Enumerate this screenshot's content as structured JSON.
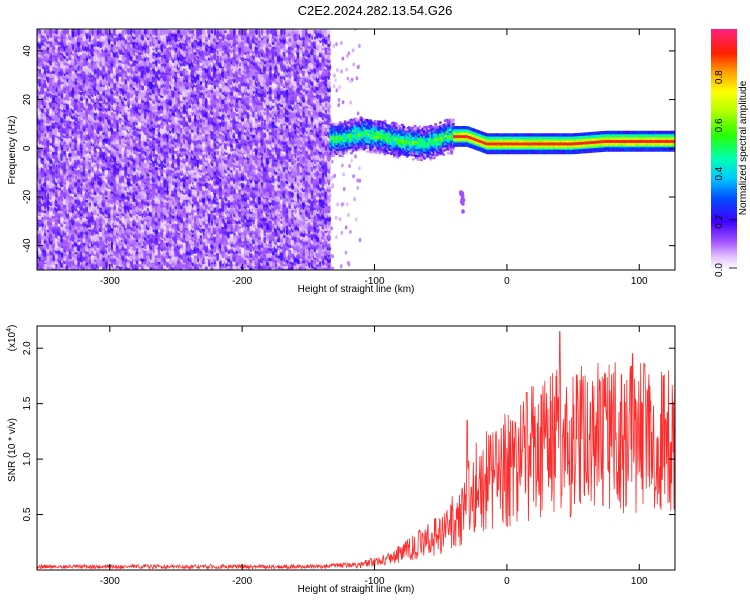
{
  "page": {
    "title": "C2E2.2024.282.13.54.G26"
  },
  "chart_data": [
    {
      "type": "heatmap",
      "title": "C2E2.2024.282.13.54.G26",
      "xlabel": "Height of straight line (km)",
      "ylabel": "Frequency (Hz)",
      "xlim": [
        -355,
        127
      ],
      "ylim": [
        -50,
        49
      ],
      "x_ticks": [
        -300,
        -200,
        -100,
        0,
        100
      ],
      "y_ticks": [
        -40,
        -20,
        0,
        20,
        40
      ],
      "colorbar": {
        "label": "Normalized spectral amplitude",
        "range": [
          0,
          1
        ],
        "ticks": [
          0.0,
          0.2,
          0.4,
          0.6,
          0.8
        ],
        "tick_labels": [
          "0.0",
          "0.2",
          "0.4",
          "0.6",
          "0.8"
        ]
      },
      "regions": [
        {
          "x_range": [
            -355,
            -133
          ],
          "description_value": 0.15,
          "freq_range": [
            -50,
            49
          ]
        },
        {
          "x_range": [
            -133,
            -40
          ],
          "freq_range": [
            -3,
            10
          ],
          "peak_value": 0.55
        },
        {
          "x_range": [
            -40,
            127
          ],
          "freq_range": [
            0,
            6
          ],
          "peak_value": 0.95
        }
      ],
      "ridge_points": [
        {
          "x": -125,
          "y": 4
        },
        {
          "x": -110,
          "y": 6
        },
        {
          "x": -95,
          "y": 5
        },
        {
          "x": -80,
          "y": 3
        },
        {
          "x": -60,
          "y": 2
        },
        {
          "x": -45,
          "y": 5
        },
        {
          "x": -30,
          "y": 5
        },
        {
          "x": -15,
          "y": 2
        },
        {
          "x": 0,
          "y": 2
        },
        {
          "x": 20,
          "y": 2
        },
        {
          "x": 50,
          "y": 2
        },
        {
          "x": 75,
          "y": 3
        },
        {
          "x": 100,
          "y": 3
        },
        {
          "x": 125,
          "y": 3
        }
      ]
    },
    {
      "type": "line",
      "xlabel": "Height of straight line (km)",
      "ylabel": "SNR (10 * v/v)",
      "y_scale_label": "(x10",
      "y_scale_exponent": "4",
      "y_scale_suffix": ")",
      "xlim": [
        -355,
        127
      ],
      "ylim": [
        0,
        2.2
      ],
      "x_ticks": [
        -300,
        -200,
        -100,
        0,
        100
      ],
      "y_ticks": [
        0.5,
        1.0,
        1.5,
        2.0
      ],
      "y_tick_labels": [
        "0.5",
        "1.0",
        "1.5",
        "2.0"
      ],
      "line_color": "#ff2a2a",
      "envelope": [
        {
          "x": -355,
          "y": 0.04
        },
        {
          "x": -140,
          "y": 0.04
        },
        {
          "x": -110,
          "y": 0.06
        },
        {
          "x": -90,
          "y": 0.12
        },
        {
          "x": -70,
          "y": 0.25
        },
        {
          "x": -50,
          "y": 0.4
        },
        {
          "x": -35,
          "y": 0.6
        },
        {
          "x": -25,
          "y": 0.9
        },
        {
          "x": -10,
          "y": 1.0
        },
        {
          "x": 0,
          "y": 1.1
        },
        {
          "x": 15,
          "y": 1.25
        },
        {
          "x": 35,
          "y": 1.4
        },
        {
          "x": 60,
          "y": 1.45
        },
        {
          "x": 90,
          "y": 1.45
        },
        {
          "x": 127,
          "y": 1.42
        }
      ],
      "spikes": [
        {
          "x": 40,
          "y": 2.15
        },
        {
          "x": 95,
          "y": 1.95
        },
        {
          "x": 118,
          "y": 1.75
        },
        {
          "x": -30,
          "y": 1.35
        },
        {
          "x": 15,
          "y": 1.6
        },
        {
          "x": 48,
          "y": 0.48
        }
      ]
    }
  ]
}
